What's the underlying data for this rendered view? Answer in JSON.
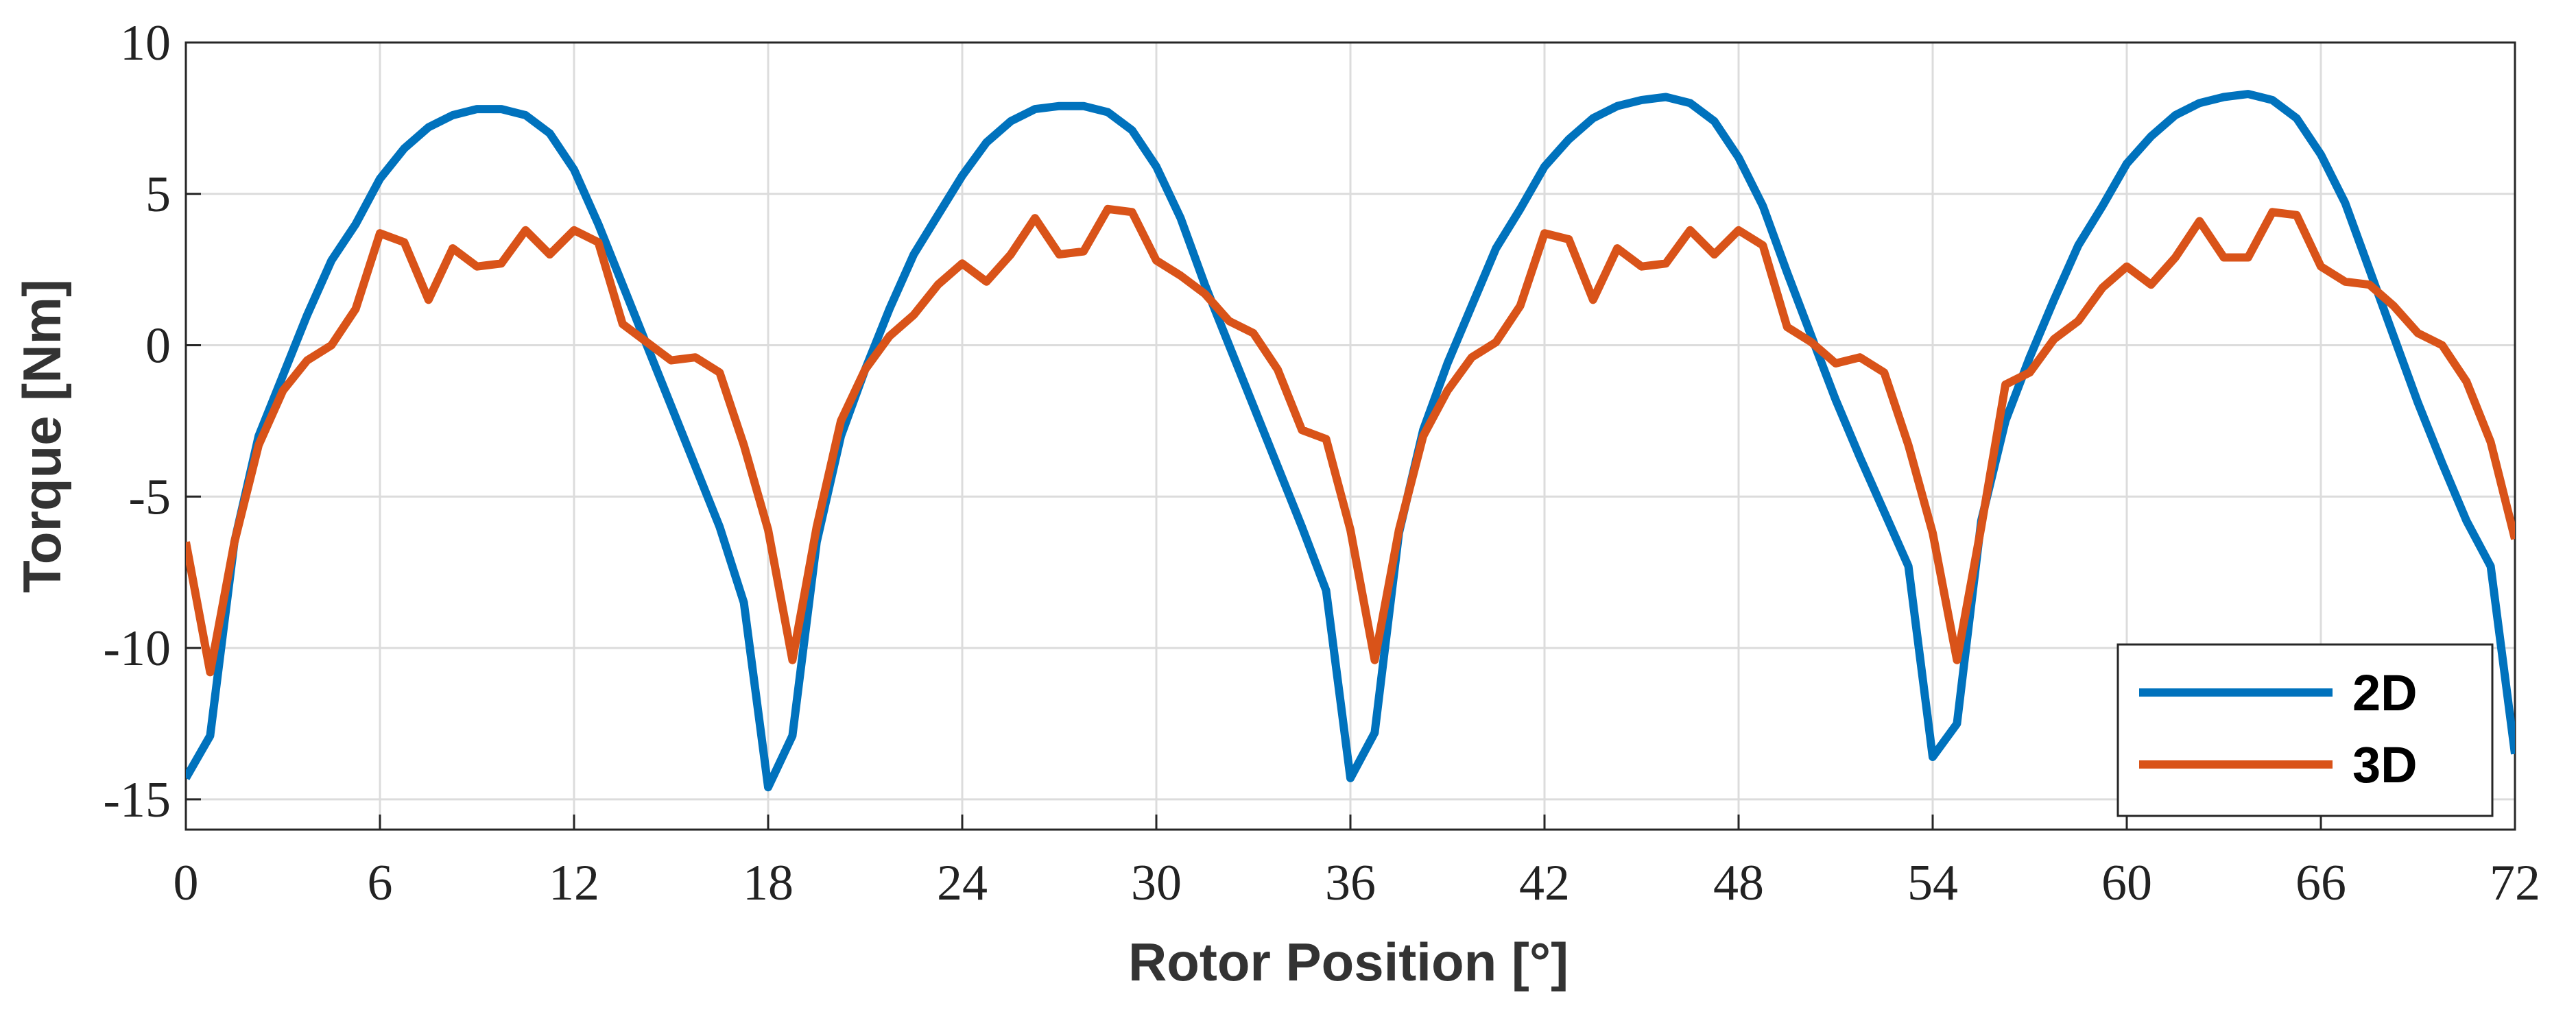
{
  "chart_data": {
    "type": "line",
    "xlabel": "Rotor Position [°]",
    "ylabel": "Torque [Nm]",
    "x": [
      0,
      0.75,
      1.5,
      2.25,
      3,
      3.75,
      4.5,
      5.25,
      6,
      6.75,
      7.5,
      8.25,
      9,
      9.75,
      10.5,
      11.25,
      12,
      12.75,
      13.5,
      14.25,
      15,
      15.75,
      16.5,
      17.25,
      18,
      18.75,
      19.5,
      20.25,
      21,
      21.75,
      22.5,
      23.25,
      24,
      24.75,
      25.5,
      26.25,
      27,
      27.75,
      28.5,
      29.25,
      30,
      30.75,
      31.5,
      32.25,
      33,
      33.75,
      34.5,
      35.25,
      36,
      36.75,
      37.5,
      38.25,
      39,
      39.75,
      40.5,
      41.25,
      42,
      42.75,
      43.5,
      44.25,
      45,
      45.75,
      46.5,
      47.25,
      48,
      48.75,
      49.5,
      50.25,
      51,
      51.75,
      52.5,
      53.25,
      54,
      54.75,
      55.5,
      56.25,
      57,
      57.75,
      58.5,
      59.25,
      60,
      60.75,
      61.5,
      62.25,
      63,
      63.75,
      64.5,
      65.25,
      66,
      66.75,
      67.5,
      68.25,
      69,
      69.75,
      70.5,
      71.25,
      72
    ],
    "series": [
      {
        "name": "2D",
        "color": "#0072BD",
        "values": [
          -14.3,
          -12.9,
          -6.5,
          -3.0,
          -1.0,
          1.0,
          2.8,
          4.0,
          5.5,
          6.5,
          7.2,
          7.6,
          7.8,
          7.8,
          7.6,
          7.0,
          5.8,
          4.0,
          2.0,
          0,
          -2.0,
          -4.0,
          -6.0,
          -8.5,
          -14.6,
          -12.9,
          -6.5,
          -3.0,
          -0.8,
          1.2,
          3.0,
          4.3,
          5.6,
          6.7,
          7.4,
          7.8,
          7.9,
          7.9,
          7.7,
          7.1,
          5.9,
          4.2,
          2.0,
          0,
          -2.0,
          -4.0,
          -6.0,
          -8.1,
          -14.3,
          -12.8,
          -6.2,
          -2.8,
          -0.6,
          1.3,
          3.2,
          4.5,
          5.9,
          6.8,
          7.5,
          7.9,
          8.1,
          8.2,
          8.0,
          7.4,
          6.2,
          4.6,
          2.4,
          0.3,
          -1.8,
          -3.7,
          -5.5,
          -7.3,
          -13.6,
          -12.5,
          -5.8,
          -2.5,
          -0.4,
          1.5,
          3.3,
          4.6,
          6.0,
          6.9,
          7.6,
          8.0,
          8.2,
          8.3,
          8.1,
          7.5,
          6.3,
          4.7,
          2.5,
          0.3,
          -1.9,
          -3.9,
          -5.8,
          -7.3,
          -13.5
        ]
      },
      {
        "name": "3D",
        "color": "#D95319",
        "values": [
          -6.5,
          -10.8,
          -6.5,
          -3.3,
          -1.5,
          -0.5,
          0,
          1.2,
          3.7,
          3.4,
          1.5,
          3.2,
          2.6,
          2.7,
          3.8,
          3.0,
          3.8,
          3.4,
          0.7,
          0.1,
          -0.5,
          -0.4,
          -0.9,
          -3.3,
          -6.1,
          -10.4,
          -6,
          -2.5,
          -0.8,
          0.3,
          1.0,
          2.0,
          2.7,
          2.1,
          3.0,
          4.2,
          3.0,
          3.1,
          4.5,
          4.4,
          2.8,
          2.3,
          1.7,
          0.8,
          0.4,
          -0.8,
          -2.8,
          -3.1,
          -6.1,
          -10.4,
          -6.1,
          -3.0,
          -1.5,
          -0.4,
          0.1,
          1.3,
          3.7,
          3.5,
          1.5,
          3.2,
          2.6,
          2.7,
          3.8,
          3.0,
          3.8,
          3.3,
          0.6,
          0.1,
          -0.6,
          -0.4,
          -0.9,
          -3.3,
          -6.2,
          -10.4,
          -6.0,
          -1.3,
          -0.9,
          0.2,
          0.8,
          1.9,
          2.6,
          2.0,
          2.9,
          4.1,
          2.9,
          2.9,
          4.4,
          4.3,
          2.6,
          2.1,
          2.0,
          1.3,
          0.4,
          0,
          -1.2,
          -3.2,
          -6.4
        ]
      }
    ],
    "xlim": [
      0,
      72
    ],
    "xticks": [
      0,
      6,
      12,
      18,
      24,
      30,
      36,
      42,
      48,
      54,
      60,
      66,
      72
    ],
    "ylim": [
      -16,
      10
    ],
    "yticks": [
      -15,
      -10,
      -5,
      0,
      5,
      10
    ],
    "grid": true,
    "legend": "lower right"
  }
}
